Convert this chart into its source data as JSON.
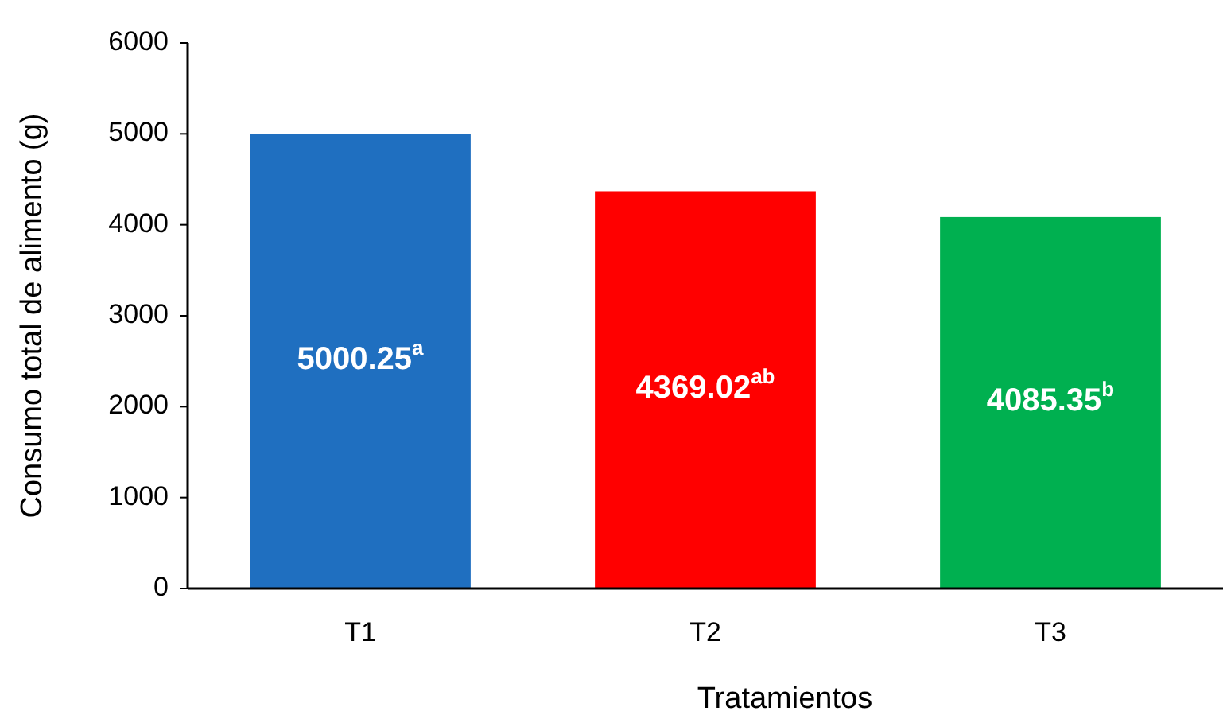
{
  "chart_data": {
    "type": "bar",
    "xlabel": "Tratamientos",
    "ylabel": "Consumo total de alimento (g)",
    "categories": [
      "T1",
      "T2",
      "T3"
    ],
    "values": [
      5000.25,
      4369.02,
      4085.35
    ],
    "colors": [
      "#1f6fc0",
      "#ff0000",
      "#00b050"
    ],
    "value_labels": [
      "5000.25$^{a}$",
      "4369.02$^{ab}$",
      "4085.35$^{b}$"
    ],
    "ylim": [
      0,
      6000
    ],
    "yticks": [
      0,
      1000,
      2000,
      3000,
      4000,
      5000,
      6000
    ],
    "grid": false
  }
}
